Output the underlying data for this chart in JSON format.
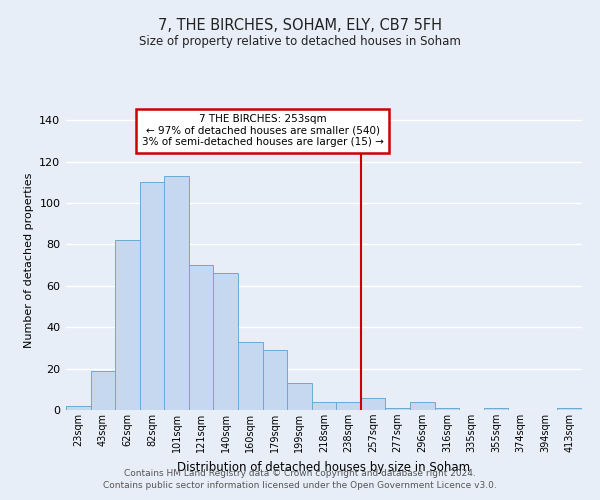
{
  "title": "7, THE BIRCHES, SOHAM, ELY, CB7 5FH",
  "subtitle": "Size of property relative to detached houses in Soham",
  "xlabel": "Distribution of detached houses by size in Soham",
  "ylabel": "Number of detached properties",
  "bar_labels": [
    "23sqm",
    "43sqm",
    "62sqm",
    "82sqm",
    "101sqm",
    "121sqm",
    "140sqm",
    "160sqm",
    "179sqm",
    "199sqm",
    "218sqm",
    "238sqm",
    "257sqm",
    "277sqm",
    "296sqm",
    "316sqm",
    "335sqm",
    "355sqm",
    "374sqm",
    "394sqm",
    "413sqm"
  ],
  "bar_values": [
    2,
    19,
    82,
    110,
    113,
    70,
    66,
    33,
    29,
    13,
    4,
    4,
    6,
    1,
    4,
    1,
    0,
    1,
    0,
    0,
    1
  ],
  "bar_color": "#c5d8f0",
  "bar_edge_color": "#6aaad4",
  "vline_color": "#cc0000",
  "annotation_title": "7 THE BIRCHES: 253sqm",
  "annotation_line1": "← 97% of detached houses are smaller (540)",
  "annotation_line2": "3% of semi-detached houses are larger (15) →",
  "annotation_box_color": "#ffffff",
  "annotation_border_color": "#cc0000",
  "ylim": [
    0,
    145
  ],
  "yticks": [
    0,
    20,
    40,
    60,
    80,
    100,
    120,
    140
  ],
  "footer1": "Contains HM Land Registry data © Crown copyright and database right 2024.",
  "footer2": "Contains public sector information licensed under the Open Government Licence v3.0.",
  "bg_color": "#e8eef8",
  "grid_color": "#ffffff"
}
